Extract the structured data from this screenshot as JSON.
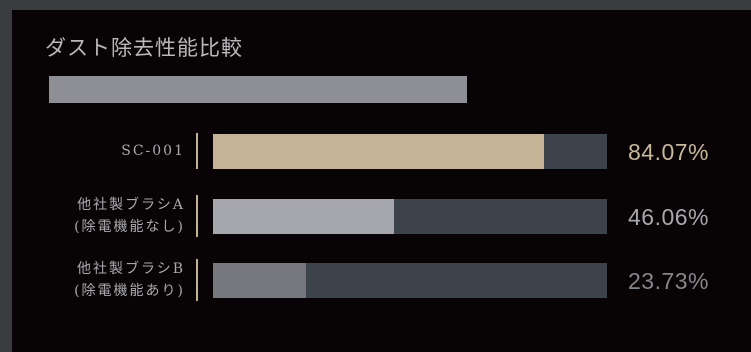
{
  "chart_data": {
    "type": "bar",
    "orientation": "horizontal",
    "title": "ダスト除去性能比較",
    "xlim": [
      0,
      100
    ],
    "categories": [
      [
        "SC-001"
      ],
      [
        "他社製ブラシA",
        "(除電機能なし)"
      ],
      [
        "他社製ブラシB",
        "(除電機能あり)"
      ]
    ],
    "values": [
      84.07,
      46.06,
      23.73
    ],
    "value_labels": [
      "84.07%",
      "46.06%",
      "23.73%"
    ],
    "bar_colors": [
      "#c4b394",
      "#a6a7ad",
      "#77787e"
    ],
    "value_colors": [
      "#c7b89c",
      "#a7a8ad",
      "#85868b"
    ],
    "track_color": "#3d434b"
  },
  "colors": {
    "background": "#080304",
    "frame": "#3a3c40",
    "title_rule": "#8e8f95",
    "divider": "#c4b394"
  }
}
